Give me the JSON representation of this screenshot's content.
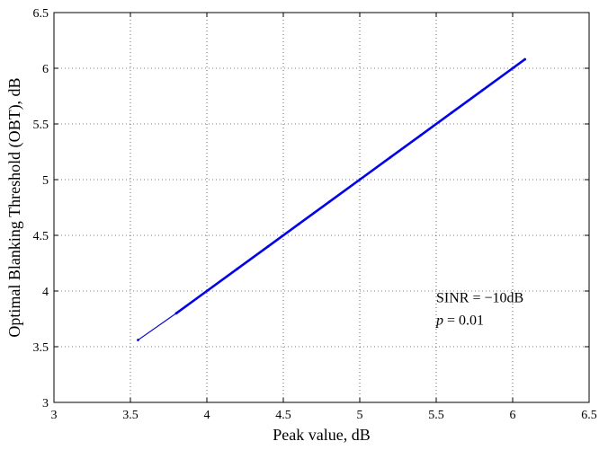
{
  "chart_data": {
    "type": "line",
    "xlabel": "Peak value, dB",
    "ylabel": "Optimal Blanking Threshold (OBT), dB",
    "xlim": [
      3,
      6.5
    ],
    "ylim": [
      3,
      6.5
    ],
    "xticks": [
      "3",
      "3.5",
      "4",
      "4.5",
      "5",
      "5.5",
      "6",
      "6.5"
    ],
    "yticks": [
      "3",
      "3.5",
      "4",
      "4.5",
      "5",
      "5.5",
      "6",
      "6.5"
    ],
    "grid": true,
    "grid_style": "dotted",
    "series": [
      {
        "color": "#0000ff",
        "x": [
          3.55,
          3.8,
          4.0,
          4.2,
          4.4,
          4.6,
          4.8,
          5.0,
          5.2,
          5.4,
          5.6,
          5.8,
          6.0,
          6.08
        ],
        "y": [
          3.56,
          3.8,
          4.0,
          4.2,
          4.4,
          4.6,
          4.8,
          5.0,
          5.2,
          5.4,
          5.6,
          5.8,
          6.0,
          6.08
        ]
      }
    ],
    "annotations": [
      {
        "line1": "SINR = −10dB",
        "line2_var": "p",
        "line2_rest": " = 0.01",
        "x": 5.5,
        "y": 3.9
      }
    ]
  }
}
